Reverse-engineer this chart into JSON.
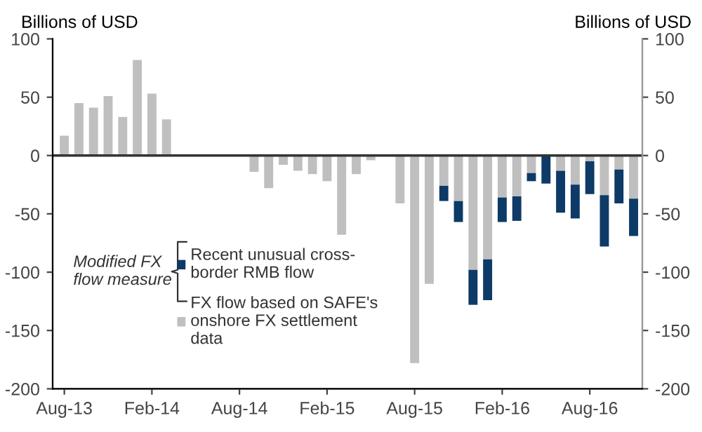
{
  "chart_data": {
    "type": "bar",
    "stacked": true,
    "ylabel": "Billions of USD",
    "y2label": "Billions of USD",
    "categories": [
      "Aug-13",
      null,
      null,
      null,
      null,
      null,
      "Feb-14",
      null,
      null,
      null,
      null,
      null,
      "Aug-14",
      null,
      null,
      null,
      null,
      null,
      "Feb-15",
      null,
      null,
      null,
      null,
      null,
      "Aug-15",
      null,
      null,
      null,
      null,
      null,
      "Feb-16",
      null,
      null,
      null,
      null,
      null,
      "Aug-16",
      null,
      null,
      null
    ],
    "series": [
      {
        "name": "FX flow based on SAFE's\nonshore FX settlement\ndata",
        "color": "#bfbfbf",
        "values": [
          17,
          45,
          41,
          51,
          33,
          82,
          53,
          31,
          1,
          null,
          1,
          null,
          1,
          -14,
          -28,
          -8,
          -13,
          -16,
          -22,
          -68,
          -16,
          -4,
          0,
          -41,
          -178,
          -110,
          -26,
          -39,
          -98,
          -89,
          -36,
          -35,
          -15,
          null,
          -13,
          -25,
          -5,
          -34,
          -12,
          -37
        ]
      },
      {
        "name": "Recent unusual cross-\nborder RMB flow",
        "color": "#0d3a66",
        "values": [
          null,
          null,
          null,
          null,
          null,
          null,
          null,
          null,
          null,
          null,
          null,
          null,
          null,
          null,
          null,
          null,
          null,
          null,
          null,
          null,
          null,
          null,
          null,
          null,
          null,
          null,
          -13,
          -18,
          -30,
          -35,
          -21,
          -21,
          -7,
          -24,
          -36,
          -29,
          -28,
          -44,
          -29,
          -32
        ]
      }
    ],
    "ylim": [
      -200,
      100
    ],
    "yticks": [
      -200,
      -150,
      -100,
      -50,
      0,
      50,
      100
    ],
    "y2lim": [
      -200,
      100
    ],
    "y2ticks": [
      -200,
      -150,
      -100,
      -50,
      0,
      50,
      100
    ],
    "legend": "bottom left",
    "ref_lines": [
      {
        "axis": "y",
        "value": 0,
        "color": "#333333"
      }
    ],
    "annotations": [
      "Modified FX\nflow measure"
    ]
  }
}
